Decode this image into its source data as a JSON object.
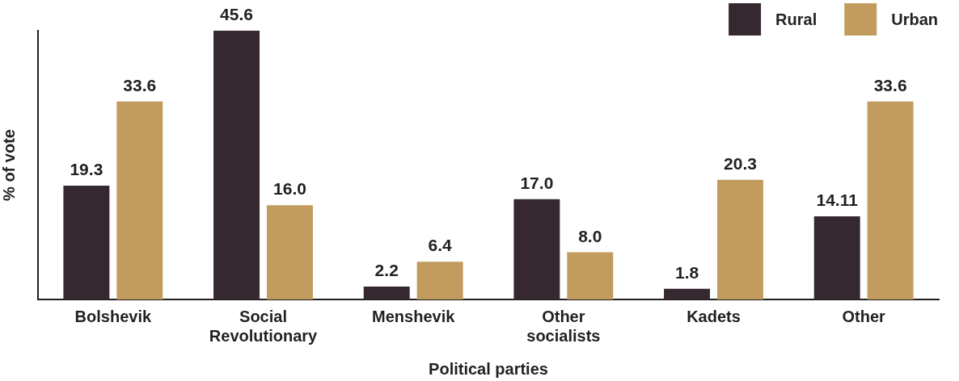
{
  "chart_data": {
    "type": "bar",
    "xlabel": "Political parties",
    "ylabel": "% of vote",
    "categories": [
      "Bolshevik",
      "Social Revolutionary",
      "Menshevik",
      "Other socialists",
      "Kadets",
      "Other"
    ],
    "series": [
      {
        "name": "Rural",
        "color": "#352830",
        "values": [
          19.3,
          45.6,
          2.2,
          17.0,
          1.8,
          14.11
        ],
        "value_labels": [
          "19.3",
          "45.6",
          "2.2",
          "17.0",
          "1.8",
          "14.11"
        ]
      },
      {
        "name": "Urban",
        "color": "#c29c5e",
        "values": [
          33.6,
          16.0,
          6.4,
          8.0,
          20.3,
          33.6
        ],
        "value_labels": [
          "33.6",
          "16.0",
          "6.4",
          "8.0",
          "20.3",
          "33.6"
        ]
      }
    ],
    "legend": "top right",
    "tick_labels": "x"
  }
}
